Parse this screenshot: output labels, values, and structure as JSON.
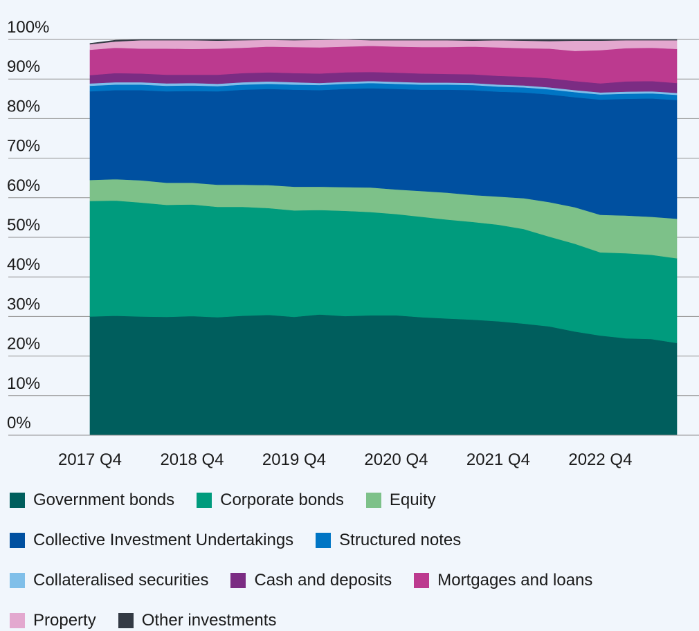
{
  "chart_data": {
    "type": "area",
    "stacked": true,
    "x": [
      "2017 Q4",
      "2018 Q1",
      "2018 Q2",
      "2018 Q3",
      "2018 Q4",
      "2019 Q1",
      "2019 Q2",
      "2019 Q3",
      "2019 Q4",
      "2020 Q1",
      "2020 Q2",
      "2020 Q3",
      "2020 Q4",
      "2021 Q1",
      "2021 Q2",
      "2021 Q3",
      "2021 Q4",
      "2022 Q1",
      "2022 Q2",
      "2022 Q3",
      "2022 Q4",
      "2023 Q1",
      "2023 Q2",
      "2023 Q3"
    ],
    "x_tick_labels": [
      "2017 Q4",
      "2018 Q4",
      "2019 Q4",
      "2020 Q4",
      "2021 Q4",
      "2022 Q4"
    ],
    "y_tick_labels": [
      "0%",
      "10%",
      "20%",
      "30%",
      "40%",
      "50%",
      "60%",
      "70%",
      "80%",
      "90%",
      "100%"
    ],
    "ylim": [
      0,
      100
    ],
    "grid": "horizontal",
    "legend_position": "bottom",
    "series": [
      {
        "name": "Government bonds",
        "color": "#005e5d",
        "values": [
          30.0,
          30.2,
          30.0,
          29.9,
          30.1,
          29.8,
          30.2,
          30.4,
          29.9,
          30.5,
          30.1,
          30.3,
          30.3,
          29.8,
          29.5,
          29.2,
          28.8,
          28.2,
          27.5,
          26.2,
          25.2,
          24.5,
          24.3,
          23.3
        ]
      },
      {
        "name": "Corporate bonds",
        "color": "#009b7d",
        "values": [
          29.2,
          29.1,
          28.8,
          28.3,
          28.2,
          27.9,
          27.5,
          27.0,
          26.9,
          26.4,
          26.6,
          26.1,
          25.6,
          25.4,
          25.0,
          24.7,
          24.4,
          23.9,
          22.7,
          22.2,
          21.0,
          21.5,
          21.3,
          21.4
        ]
      },
      {
        "name": "Equity",
        "color": "#7dc189",
        "values": [
          5.3,
          5.4,
          5.6,
          5.6,
          5.5,
          5.6,
          5.6,
          5.8,
          6.0,
          5.9,
          6.0,
          6.2,
          6.2,
          6.5,
          6.8,
          6.8,
          7.1,
          7.8,
          8.7,
          9.2,
          9.5,
          9.5,
          9.6,
          10.0
        ]
      },
      {
        "name": "Collective Investment Undertakings",
        "color": "#0050a0",
        "values": [
          22.4,
          22.5,
          22.8,
          23.1,
          23.2,
          23.6,
          24.0,
          24.3,
          24.5,
          24.4,
          24.8,
          25.1,
          25.4,
          25.6,
          26.0,
          26.5,
          26.5,
          26.7,
          27.2,
          27.8,
          29.1,
          29.5,
          29.9,
          30.0
        ]
      },
      {
        "name": "Structured notes",
        "color": "#0075c4",
        "values": [
          1.4,
          1.4,
          1.4,
          1.4,
          1.4,
          1.3,
          1.3,
          1.3,
          1.3,
          1.3,
          1.3,
          1.3,
          1.3,
          1.3,
          1.3,
          1.3,
          1.3,
          1.3,
          1.3,
          1.3,
          1.3,
          1.3,
          1.3,
          1.3
        ]
      },
      {
        "name": "Collateralised securities",
        "color": "#80bfe9",
        "values": [
          0.6,
          0.6,
          0.6,
          0.6,
          0.6,
          0.6,
          0.6,
          0.6,
          0.6,
          0.5,
          0.5,
          0.5,
          0.5,
          0.5,
          0.5,
          0.5,
          0.5,
          0.5,
          0.5,
          0.5,
          0.5,
          0.5,
          0.5,
          0.5
        ]
      },
      {
        "name": "Cash and deposits",
        "color": "#7b2c83",
        "values": [
          2.1,
          2.3,
          2.2,
          2.2,
          2.1,
          2.3,
          2.3,
          2.3,
          2.3,
          2.4,
          2.4,
          2.3,
          2.3,
          2.3,
          2.2,
          2.2,
          2.2,
          2.2,
          2.3,
          2.3,
          2.3,
          2.6,
          2.6,
          2.5
        ]
      },
      {
        "name": "Mortgages and loans",
        "color": "#bc3a8f",
        "values": [
          6.4,
          6.4,
          6.3,
          6.6,
          6.5,
          6.6,
          6.4,
          6.5,
          6.6,
          6.6,
          6.5,
          6.6,
          6.6,
          6.7,
          6.8,
          7.0,
          7.2,
          7.2,
          7.5,
          7.6,
          8.4,
          8.4,
          8.4,
          8.6
        ]
      },
      {
        "name": "Property",
        "color": "#e3a8cf",
        "values": [
          1.4,
          1.6,
          2.1,
          2.1,
          2.2,
          2.0,
          1.9,
          1.7,
          1.7,
          1.9,
          1.8,
          1.4,
          1.6,
          1.7,
          1.7,
          1.5,
          1.8,
          1.9,
          1.9,
          2.6,
          2.4,
          2.0,
          1.9,
          2.2
        ]
      },
      {
        "name": "Other investments",
        "color": "#333a44",
        "values": [
          0.2,
          0.3,
          0.3,
          0.3,
          0.3,
          0.3,
          0.2,
          0.2,
          0.3,
          0.3,
          0.3,
          0.3,
          0.3,
          0.3,
          0.3,
          0.3,
          0.3,
          0.3,
          0.4,
          0.4,
          0.4,
          0.3,
          0.3,
          0.3
        ]
      }
    ]
  }
}
